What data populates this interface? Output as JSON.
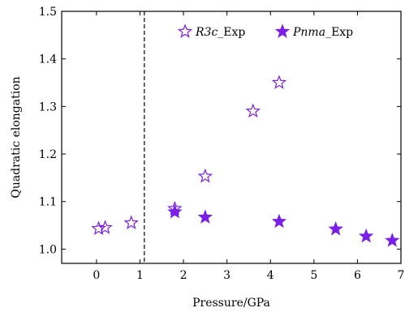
{
  "chart_data": {
    "type": "scatter",
    "title": "",
    "xlabel": "Pressure/GPa",
    "ylabel": "Quadratic elongation",
    "xlim": [
      -0.8,
      7.0
    ],
    "ylim": [
      0.97,
      1.5
    ],
    "xticks": [
      0,
      1,
      2,
      3,
      4,
      5,
      6,
      7
    ],
    "yticks": [
      1.0,
      1.1,
      1.2,
      1.3,
      1.4,
      1.5
    ],
    "ytick_labels": [
      "1.0",
      "1.1",
      "1.2",
      "1.3",
      "1.4",
      "1.5"
    ],
    "grid": false,
    "legend_position": "top-right",
    "reference_line": {
      "x": 1.1,
      "style": "dashed"
    },
    "series": [
      {
        "name_italic": "R3c",
        "name_suffix": "_Exp",
        "marker": "open-star",
        "color": "#7B1FE6",
        "x": [
          0.05,
          0.2,
          0.8,
          1.8,
          2.5,
          3.6,
          4.2
        ],
        "y": [
          1.043,
          1.045,
          1.055,
          1.085,
          1.153,
          1.29,
          1.35
        ]
      },
      {
        "name_italic": "Pnma",
        "name_suffix": "_Exp",
        "marker": "filled-star",
        "color": "#7B1FE6",
        "x": [
          1.8,
          2.5,
          4.2,
          5.5,
          6.2,
          6.8
        ],
        "y": [
          1.078,
          1.067,
          1.058,
          1.042,
          1.027,
          1.018
        ]
      }
    ]
  }
}
